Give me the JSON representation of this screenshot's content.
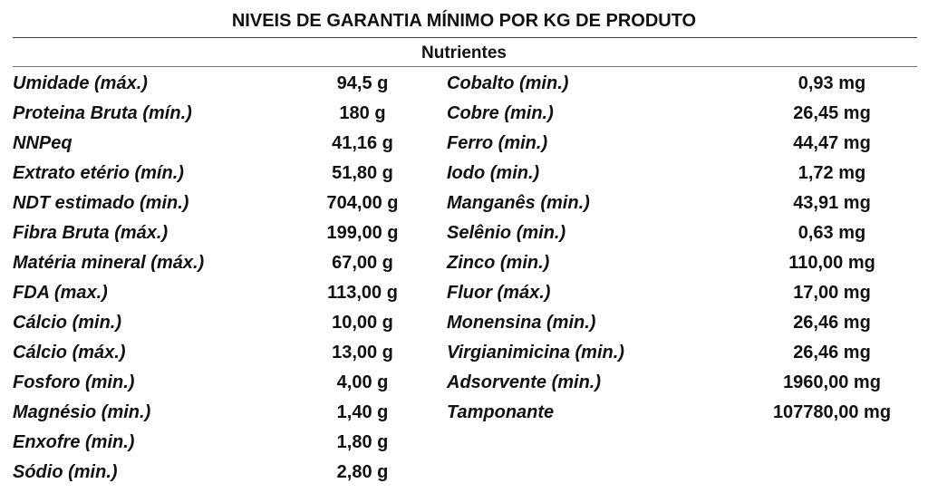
{
  "title": "NIVEIS DE GARANTIA MÍNIMO POR KG DE PRODUTO",
  "subtitle": "Nutrientes",
  "rows": [
    {
      "left_name": "Umidade (máx.)",
      "left_value": "94,5  g",
      "right_name": "Cobalto (min.)",
      "right_value": "0,93 mg"
    },
    {
      "left_name": "Proteina Bruta (mín.)",
      "left_value": "180 g",
      "right_name": "Cobre (min.)",
      "right_value": "26,45 mg"
    },
    {
      "left_name": "NNPeq",
      "left_value": "41,16 g",
      "right_name": "Ferro (min.)",
      "right_value": "44,47 mg"
    },
    {
      "left_name": "Extrato etério (mín.)",
      "left_value": "51,80 g",
      "right_name": "Iodo (min.)",
      "right_value": "1,72 mg"
    },
    {
      "left_name": "NDT estimado (min.)",
      "left_value": "704,00 g",
      "right_name": "Manganês (min.)",
      "right_value": "43,91 mg"
    },
    {
      "left_name": "Fibra Bruta (máx.)",
      "left_value": "199,00 g",
      "right_name": "Selênio (min.)",
      "right_value": "0,63 mg"
    },
    {
      "left_name": "Matéria mineral (máx.)",
      "left_value": "67,00 g",
      "right_name": "Zinco (min.)",
      "right_value": "110,00 mg"
    },
    {
      "left_name": "FDA (max.)",
      "left_value": "113,00 g",
      "right_name": "Fluor (máx.)",
      "right_value": "17,00 mg"
    },
    {
      "left_name": "Cálcio (min.)",
      "left_value": "10,00 g",
      "right_name": "Monensina (min.)",
      "right_value": "26,46 mg"
    },
    {
      "left_name": "Cálcio (máx.)",
      "left_value": "13,00 g",
      "right_name": "Virgianimicina (min.)",
      "right_value": "26,46 mg"
    },
    {
      "left_name": "Fosforo (min.)",
      "left_value": "4,00 g",
      "right_name": "Adsorvente (min.)",
      "right_value": "1960,00 mg"
    },
    {
      "left_name": "Magnésio (min.)",
      "left_value": "1,40 g",
      "right_name": "Tamponante",
      "right_value": "107780,00 mg"
    },
    {
      "left_name": "Enxofre (min.)",
      "left_value": "1,80 g",
      "right_name": "",
      "right_value": ""
    },
    {
      "left_name": "Sódio (min.)",
      "left_value": "2,80 g",
      "right_name": "",
      "right_value": ""
    }
  ]
}
